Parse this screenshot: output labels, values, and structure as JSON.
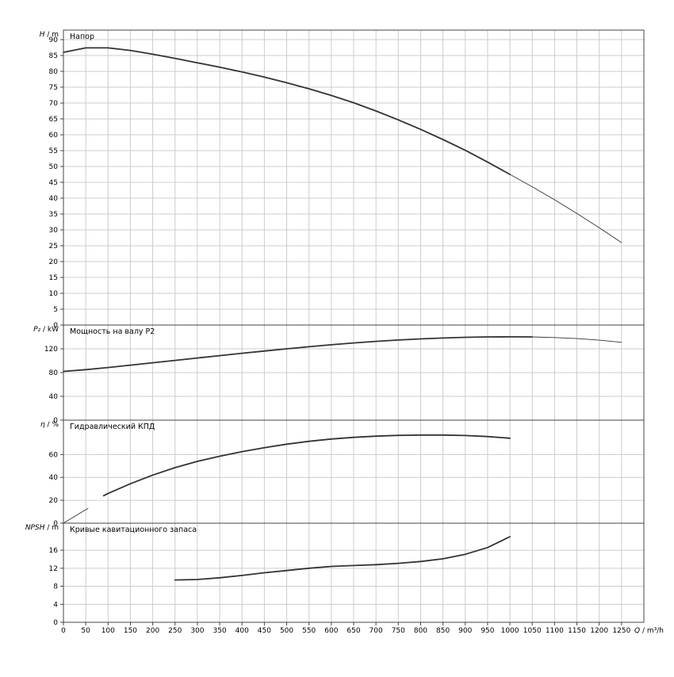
{
  "colors": {
    "background": "#ffffff",
    "grid": "#cccccc",
    "axis": "#444444",
    "curve": "#333333",
    "text": "#000000"
  },
  "chart_data": {
    "type": "line",
    "xaxis": {
      "label_var": "Q",
      "label_rest": " / m³/h",
      "min": 0,
      "max": 1300,
      "ticks": [
        0,
        50,
        100,
        150,
        200,
        250,
        300,
        350,
        400,
        450,
        500,
        550,
        600,
        650,
        700,
        750,
        800,
        850,
        900,
        950,
        1000,
        1050,
        1100,
        1150,
        1200,
        1250
      ]
    },
    "panels": [
      {
        "name": "head",
        "type": "line",
        "title": "Напор",
        "unit_var": "H",
        "unit_rest": " / m",
        "ymin": 0,
        "ymax": 93,
        "yticks": [
          0,
          5,
          10,
          15,
          20,
          25,
          30,
          35,
          40,
          45,
          50,
          55,
          60,
          65,
          70,
          75,
          80,
          85,
          90
        ],
        "series": [
          {
            "name": "head-main",
            "width": 1.8,
            "x": [
              0,
              50,
              100,
              150,
              200,
              250,
              300,
              350,
              400,
              450,
              500,
              550,
              600,
              650,
              700,
              750,
              800,
              850,
              900,
              950,
              1000
            ],
            "y": [
              86,
              87.4,
              87.4,
              86.6,
              85.4,
              84.1,
              82.7,
              81.3,
              79.8,
              78.2,
              76.4,
              74.5,
              72.4,
              70.1,
              67.5,
              64.7,
              61.7,
              58.5,
              55.1,
              51.4,
              47.5
            ]
          },
          {
            "name": "head-extension",
            "width": 0.9,
            "x": [
              1000,
              1050,
              1100,
              1150,
              1200,
              1250
            ],
            "y": [
              47.5,
              43.6,
              39.5,
              35.2,
              30.7,
              26
            ]
          }
        ]
      },
      {
        "name": "power",
        "type": "line",
        "title": "Мощность на валу P2",
        "unit_var": "P₂",
        "unit_rest": " / kW",
        "ymin": 0,
        "ymax": 160,
        "yticks": [
          0,
          40,
          80,
          120
        ],
        "series": [
          {
            "name": "power-main",
            "width": 1.8,
            "x": [
              0,
              50,
              100,
              150,
              200,
              250,
              300,
              350,
              400,
              450,
              500,
              550,
              600,
              650,
              700,
              750,
              800,
              850,
              900,
              950,
              1000,
              1050
            ],
            "y": [
              82,
              85,
              88.5,
              92.5,
              96.5,
              100.5,
              104.5,
              108.5,
              112.5,
              116.3,
              120,
              123.5,
              126.8,
              129.8,
              132.5,
              134.8,
              136.7,
              138.2,
              139.3,
              140,
              140.2,
              140
            ]
          },
          {
            "name": "power-extension",
            "width": 0.9,
            "x": [
              1050,
              1100,
              1150,
              1200,
              1250
            ],
            "y": [
              140,
              139,
              137.2,
              134.5,
              131
            ]
          }
        ]
      },
      {
        "name": "efficiency",
        "type": "line",
        "title": "Гидравлический КПД",
        "unit_var": "η",
        "unit_rest": " / %",
        "ymin": 0,
        "ymax": 90,
        "yticks": [
          0,
          20,
          40,
          60
        ],
        "series": [
          {
            "name": "efficiency-start",
            "width": 0.9,
            "x": [
              2,
              55
            ],
            "y": [
              0.5,
              13
            ]
          },
          {
            "name": "efficiency-main",
            "width": 1.8,
            "x": [
              90,
              100,
              150,
              200,
              250,
              300,
              350,
              400,
              450,
              500,
              550,
              600,
              650,
              700,
              750,
              800,
              850,
              900,
              950,
              1000
            ],
            "y": [
              24,
              26,
              34.5,
              42,
              48.5,
              54,
              58.5,
              62.5,
              66,
              69,
              71.5,
              73.5,
              75,
              76,
              76.7,
              77,
              77,
              76.6,
              75.7,
              74.2
            ]
          }
        ]
      },
      {
        "name": "npsh",
        "type": "line",
        "title": "Кривые кавитационного запаса",
        "unit_var": "NPSH",
        "unit_rest": " / m",
        "ymin": 0,
        "ymax": 22,
        "yticks": [
          0,
          4,
          8,
          12,
          16
        ],
        "series": [
          {
            "name": "npsh-main",
            "width": 1.8,
            "x": [
              250,
              300,
              350,
              400,
              450,
              500,
              550,
              600,
              650,
              700,
              750,
              800,
              850,
              900,
              950,
              1000
            ],
            "y": [
              9.4,
              9.5,
              9.9,
              10.4,
              11,
              11.5,
              12,
              12.4,
              12.6,
              12.8,
              13.1,
              13.5,
              14.1,
              15.1,
              16.6,
              19
            ]
          }
        ]
      }
    ]
  }
}
